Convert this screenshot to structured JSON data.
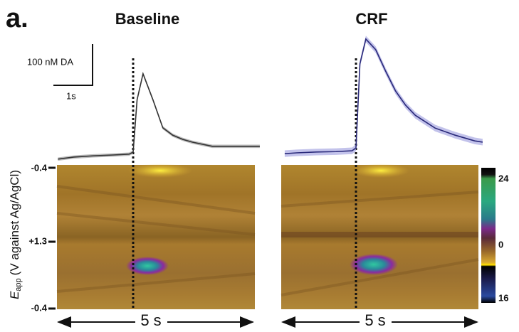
{
  "panel_label": "a.",
  "scale_bar": {
    "y_label": "100 nM DA",
    "x_label": "1s"
  },
  "chart_data": [
    {
      "type": "line",
      "title": "Baseline",
      "x": [
        -1.9,
        -1.5,
        -1,
        -0.5,
        -0.1,
        0,
        0.1,
        0.25,
        0.5,
        0.75,
        1,
        1.25,
        1.5,
        2,
        2.5,
        3,
        3.2
      ],
      "values": [
        -10,
        -5,
        -2,
        0,
        2,
        7,
        134,
        197,
        134,
        66,
        48,
        38,
        31,
        21,
        21,
        21,
        21
      ],
      "error_band": 4,
      "color": "#333333",
      "band_color": "#aaaaaa"
    },
    {
      "type": "line",
      "title": "CRF",
      "x": [
        -1.8,
        -1.5,
        -1,
        -0.5,
        -0.1,
        0,
        0.1,
        0.25,
        0.5,
        0.75,
        1,
        1.25,
        1.5,
        2,
        2.5,
        3,
        3.2
      ],
      "values": [
        -2,
        0,
        2,
        3,
        5,
        12,
        216,
        276,
        250,
        198,
        150,
        116,
        91,
        60,
        43,
        29,
        26
      ],
      "error_band": 8,
      "color": "#2a2a7a",
      "band_color": "#b4b4e6"
    }
  ],
  "color_plot": {
    "y_axis_label": {
      "symbol": "E",
      "subscript": "app",
      "text": "(V against Ag/AgCl)"
    },
    "yticks": [
      "-0.4",
      "+1.3",
      "-0.4"
    ],
    "x_labels": [
      "5 s",
      "5 s"
    ],
    "colorbar_ticks": [
      "24",
      "0",
      "16"
    ]
  }
}
